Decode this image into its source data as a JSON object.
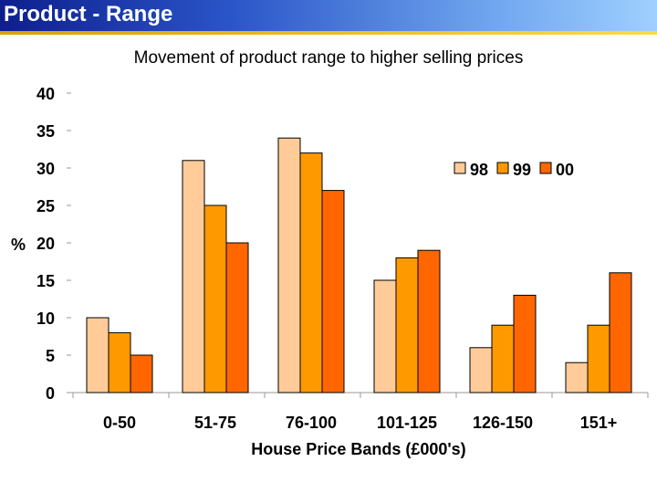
{
  "slide": {
    "title": "Product - Range",
    "subtitle": "Movement of product range to higher selling prices"
  },
  "chart_data": {
    "type": "bar",
    "title": "Movement of product range to higher selling prices",
    "xlabel": "House Price Bands (£000's)",
    "ylabel": "%",
    "ylim": [
      0,
      40
    ],
    "yticks": [
      0,
      5,
      10,
      15,
      20,
      25,
      30,
      35,
      40
    ],
    "categories": [
      "0-50",
      "51-75",
      "76-100",
      "101-125",
      "126-150",
      "151+"
    ],
    "series": [
      {
        "name": "98",
        "color": "#ffcc99",
        "values": [
          10,
          31,
          34,
          15,
          6,
          4
        ]
      },
      {
        "name": "99",
        "color": "#ff9900",
        "values": [
          8,
          25,
          32,
          18,
          9,
          9
        ]
      },
      {
        "name": "00",
        "color": "#ff6600",
        "values": [
          5,
          20,
          27,
          19,
          13,
          16
        ]
      }
    ],
    "legend_position": "top-right",
    "grid": false
  }
}
